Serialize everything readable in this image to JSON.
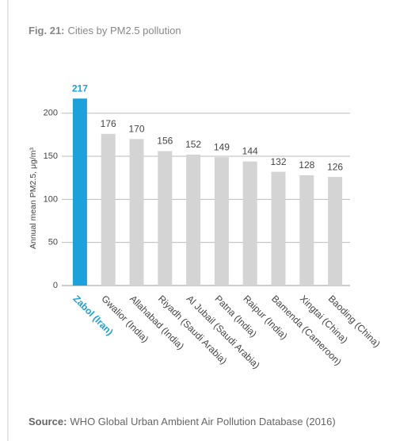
{
  "chart_data": {
    "type": "bar",
    "title_prefix": "Fig. 21:",
    "title": "Cities by PM2.5 pollution",
    "y_label": "Annual mean PM2.5, μg/m³",
    "categories": [
      "Zabol (Iran)",
      "Gwalior (India)",
      "Allahabad (India)",
      "Riyadh (Saudi Arabia)",
      "Al Jubail (Saudi Arabia)",
      "Patna (India)",
      "Raipur (India)",
      "Bamenda (Cameroon)",
      "Xingtai (China)",
      "Baoding (China)"
    ],
    "values": [
      217,
      176,
      170,
      156,
      152,
      149,
      144,
      132,
      128,
      126
    ],
    "colors": [
      "#1ba1dc",
      "#d4d4d4",
      "#d4d4d4",
      "#d4d4d4",
      "#d4d4d4",
      "#d4d4d4",
      "#d4d4d4",
      "#d4d4d4",
      "#d4d4d4",
      "#d4d4d4"
    ],
    "highlight_index": 0,
    "ylim": [
      0,
      220
    ],
    "yticks": [
      0,
      50,
      100,
      150,
      200
    ],
    "grid": true,
    "source_label": "Source:",
    "source": "WHO Global Urban Ambient Air Pollution Database (2016)"
  }
}
